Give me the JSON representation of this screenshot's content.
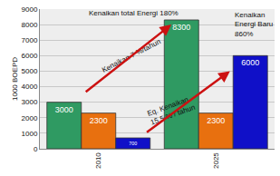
{
  "chart_data": {
    "type": "bar",
    "categories": [
      "2010",
      "2025"
    ],
    "series": [
      {
        "color": "#2f9a62",
        "values": [
          3000,
          8300
        ]
      },
      {
        "color": "#e8700f",
        "values": [
          2300,
          2300
        ]
      },
      {
        "color": "#1010c8",
        "values": [
          700,
          6000
        ]
      }
    ],
    "y_label": "1000 BOEPD",
    "ylim": [
      0,
      9000
    ],
    "yticks": [
      0,
      1000,
      2000,
      3000,
      4000,
      5000,
      6000,
      7000,
      8000,
      9000
    ],
    "grid": true,
    "data_labels": true,
    "annotations": [
      "Kenaikan total Energi 180%",
      "Kenaikan\nEnergi Baru\n860%",
      "Kenaikan 7 %/tahun",
      "Eq. Kenaikan\n15,5 % / tahun"
    ]
  }
}
